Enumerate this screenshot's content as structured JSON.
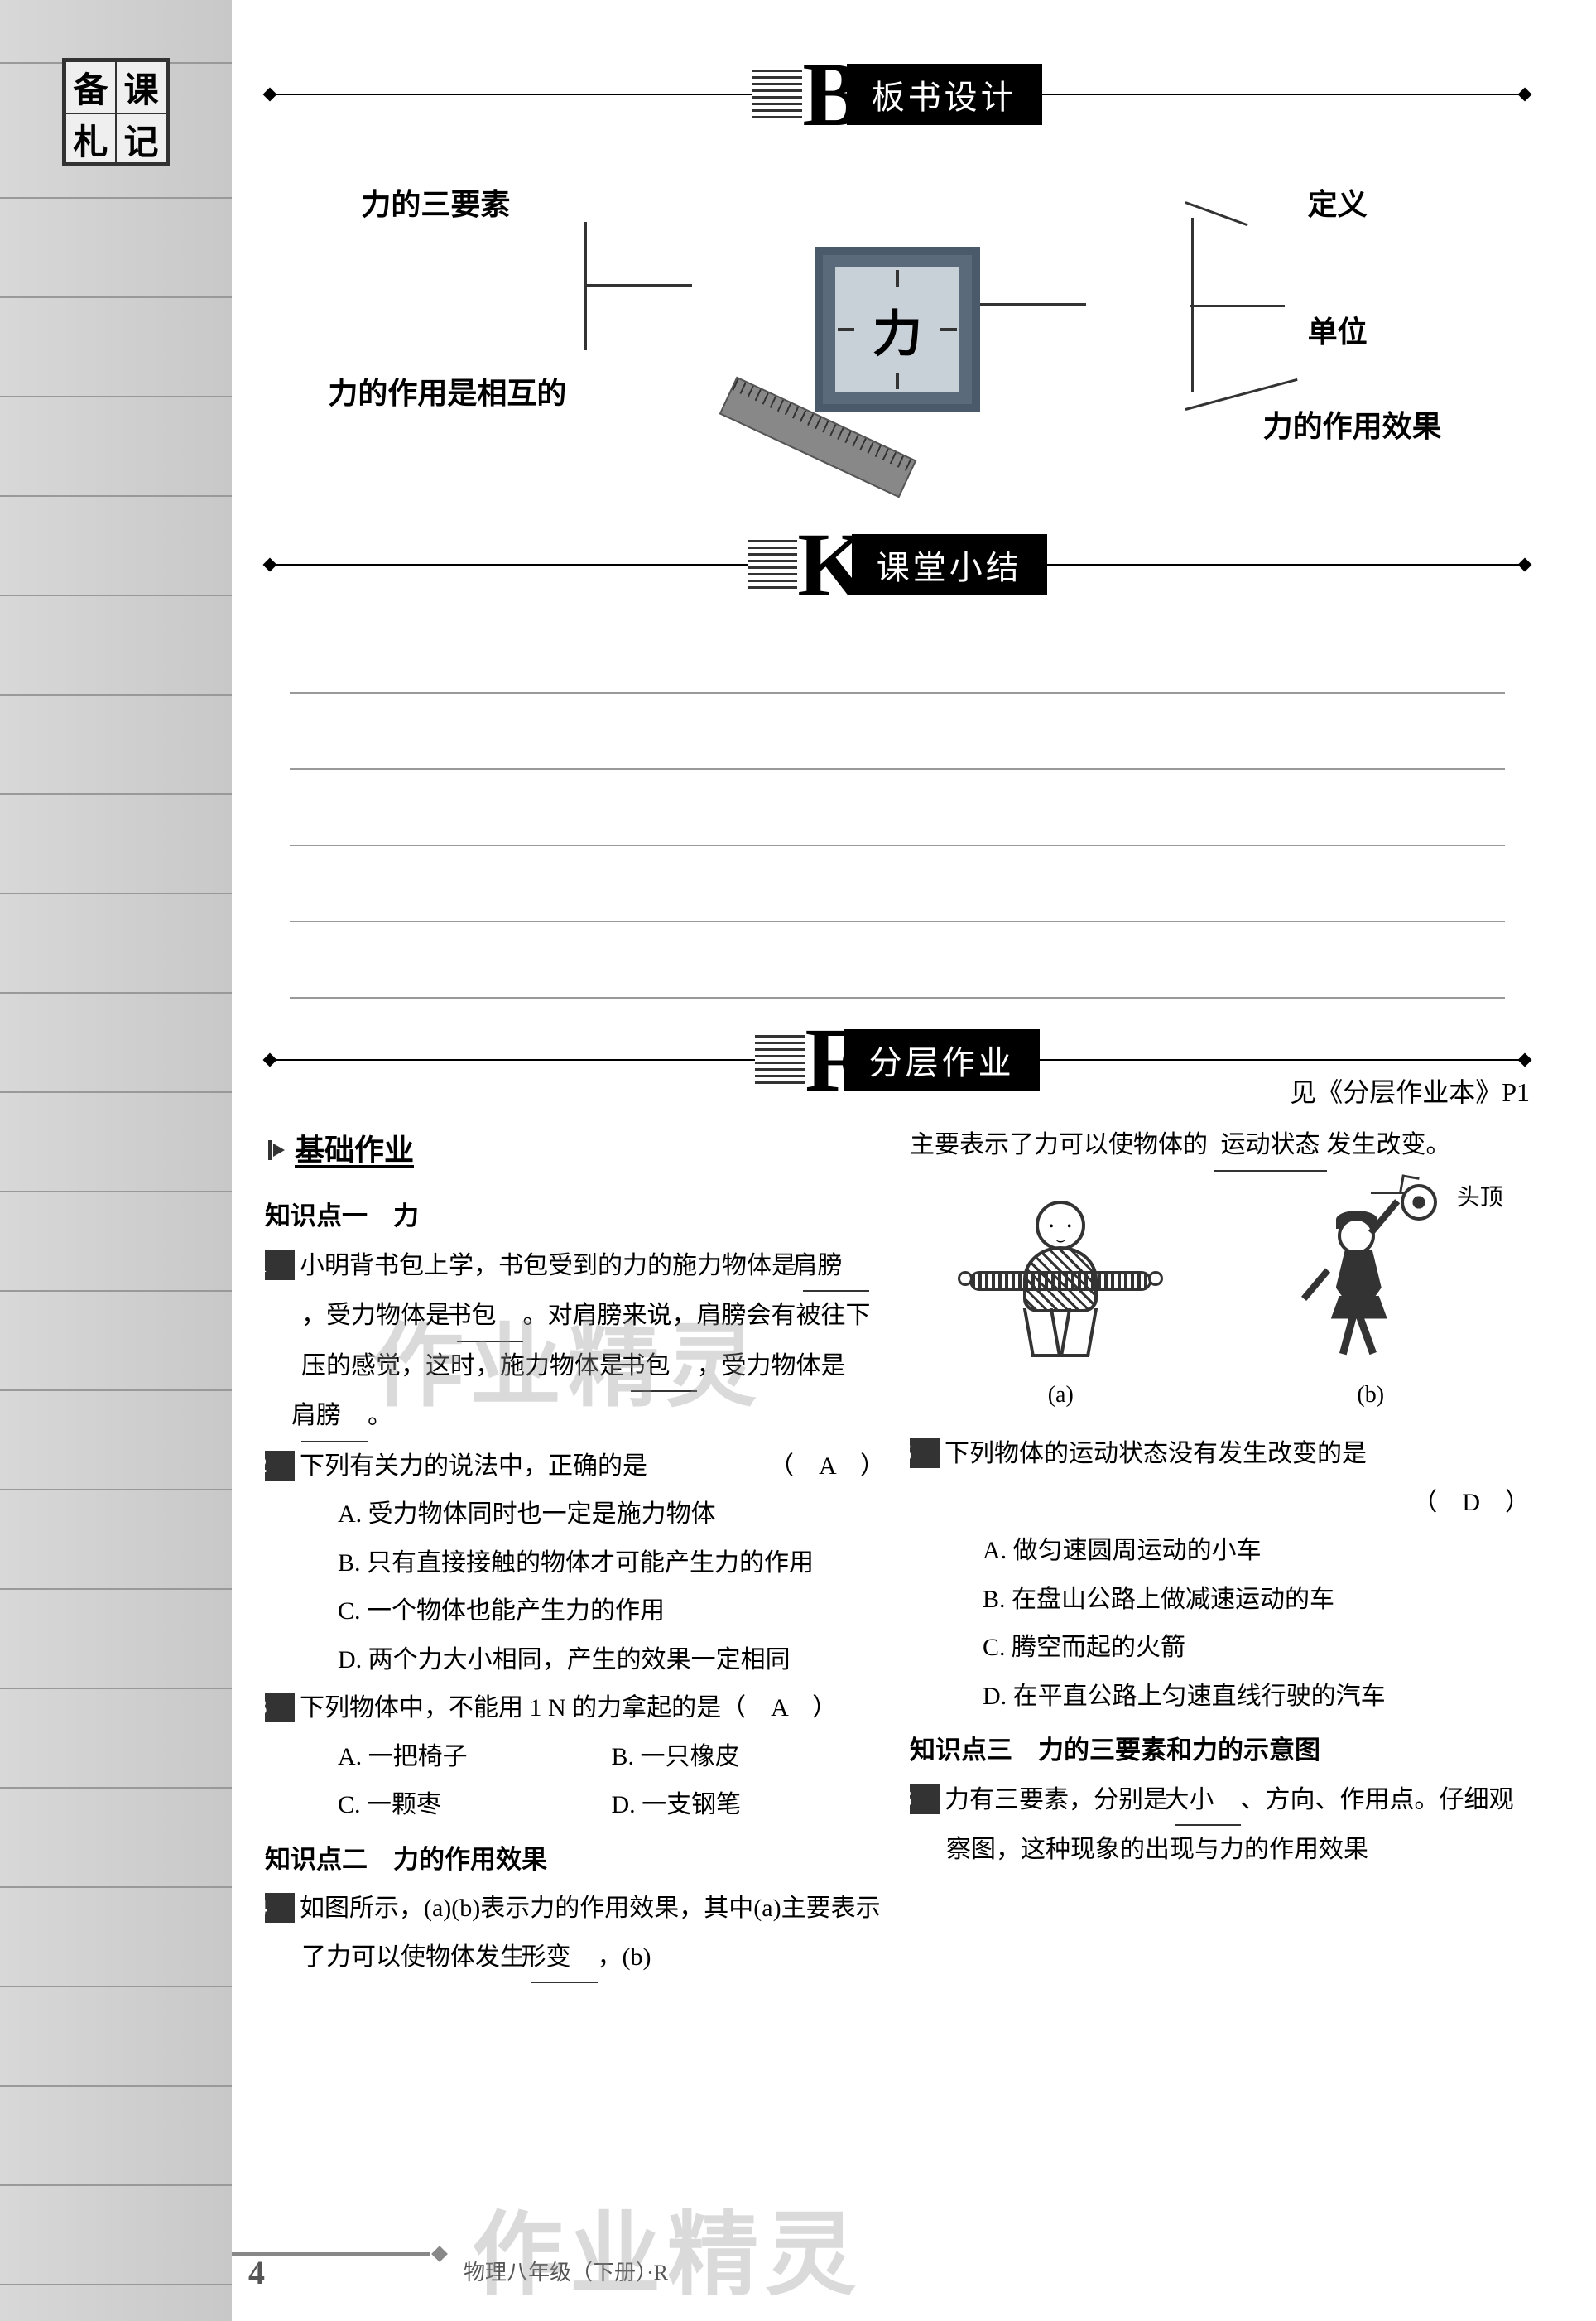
{
  "stamp": [
    "备",
    "课",
    "札",
    "记"
  ],
  "sections": {
    "b": {
      "letter": "B",
      "label": "板书设计"
    },
    "k": {
      "letter": "K",
      "label": "课堂小结"
    },
    "f": {
      "letter": "F",
      "label": "分层作业"
    }
  },
  "mindmap": {
    "center": "力",
    "left_top": "力的三要素",
    "left_bottom": "力的作用是相互的",
    "right_top": "定义",
    "right_mid": "单位",
    "right_bottom": "力的作用效果"
  },
  "ref": "见《分层作业本》P1",
  "sub_basic": "基础作业",
  "kp1": "知识点一　力",
  "kp2": "知识点二　力的作用效果",
  "kp3": "知识点三　力的三要素和力的示意图",
  "q1": {
    "num": "1",
    "text_a": "小明背书包上学，书包受到的力的施力物体是",
    "blank1": "肩膀",
    "text_b": "，受力物体是",
    "blank2": "书包",
    "text_c": "。对肩膀来说，肩膀会有被往下压的感觉，这时，施力物体是",
    "blank3": "书包",
    "text_d": "，受力物体是",
    "blank4": "肩膀",
    "text_e": "。"
  },
  "q2": {
    "num": "2",
    "text": "下列有关力的说法中，正确的是",
    "ans": "（　A　）",
    "a": "A. 受力物体同时也一定是施力物体",
    "b": "B. 只有直接接触的物体才可能产生力的作用",
    "c": "C. 一个物体也能产生力的作用",
    "d": "D. 两个力大小相同，产生的效果一定相同"
  },
  "q3": {
    "num": "3",
    "text": "下列物体中，不能用 1 N 的力拿起的是（　A　）",
    "a": "A. 一把椅子",
    "b": "B. 一只橡皮",
    "c": "C. 一颗枣",
    "d": "D. 一支钢笔"
  },
  "q4": {
    "num": "4",
    "text_a": "如图所示，(a)(b)表示力的作用效果，其中(a)主要表示了力可以使物体发生",
    "blank1": "形变",
    "text_b": "，(b)",
    "text_c": "主要表示了力可以使物体的",
    "blank2": "运动状态",
    "text_d": "发生改变。"
  },
  "fig": {
    "ball_label": "头顶",
    "cap_a": "(a)",
    "cap_b": "(b)"
  },
  "q5": {
    "num": "5",
    "text": "下列物体的运动状态没有发生改变的是",
    "ans": "（　D　）",
    "a": "A. 做匀速圆周运动的小车",
    "b": "B. 在盘山公路上做减速运动的车",
    "c": "C. 腾空而起的火箭",
    "d": "D. 在平直公路上匀速直线行驶的汽车"
  },
  "q6": {
    "num": "6",
    "text_a": "力有三要素，分别是",
    "blank1": "大小",
    "text_b": "、方向、作用点。仔细观察图，这种现象的出现与力的作用效果"
  },
  "page_num": "4",
  "page_foot": "物理八年级（下册）·R",
  "colors": {
    "section_bg": "#000000",
    "section_fg": "#ffffff",
    "margin_bg": "#d0d0d0"
  }
}
